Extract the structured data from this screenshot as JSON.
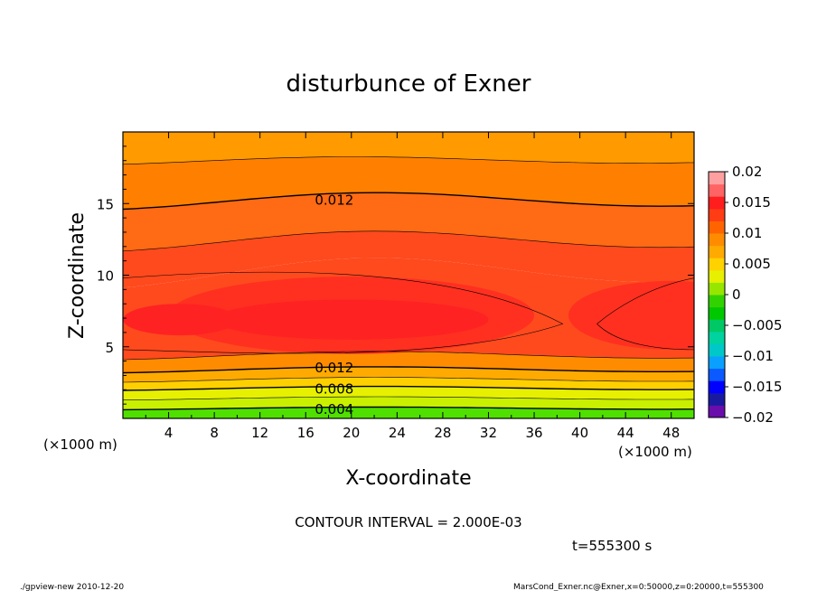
{
  "chart_data": {
    "type": "contour",
    "title": "disturbunce of Exner",
    "xlabel": "X-coordinate",
    "ylabel": "Z-coordinate",
    "x_unit_left": "(×1000 m)",
    "x_unit_right": "(×1000 m)",
    "xlim": [
      0,
      50
    ],
    "ylim": [
      0,
      20
    ],
    "x_ticks": [
      4,
      8,
      12,
      16,
      20,
      24,
      28,
      32,
      36,
      40,
      44,
      48
    ],
    "y_ticks": [
      5,
      10,
      15
    ],
    "contour_interval": 0.002,
    "contour_labels": [
      {
        "text": "0.012",
        "x": 18.5,
        "z": 15.3
      },
      {
        "text": "0.012",
        "x": 18.5,
        "z": 3.6
      },
      {
        "text": "0.008",
        "x": 18.5,
        "z": 2.1
      },
      {
        "text": "0.004",
        "x": 18.5,
        "z": 0.7
      }
    ],
    "colorbar": {
      "min": -0.02,
      "max": 0.02,
      "tick_labels": [
        "0.02",
        "0.015",
        "0.01",
        "0.005",
        "0",
        "−0.005",
        "−0.01",
        "−0.015",
        "−0.02"
      ],
      "colors": [
        "#6a0dad",
        "#1a1aa0",
        "#0000ff",
        "#0a5aff",
        "#0aa0ff",
        "#00c8c8",
        "#00d2a0",
        "#00c864",
        "#00c800",
        "#32d200",
        "#96e600",
        "#e6f000",
        "#ffd200",
        "#ffaa00",
        "#ff8c00",
        "#ff6400",
        "#ff3c14",
        "#ff1e1e",
        "#ff6464",
        "#ffa0a0"
      ]
    },
    "field_colors": {
      "top": "#ff9a00",
      "upper": "#ff8000",
      "mid_upper": "#ff6a14",
      "mid": "#ff4a1e",
      "core": "#ff3020",
      "core_inner": "#ff2222",
      "ground_yellow": "#ffd000",
      "ground_lime": "#c8f000",
      "ground_green": "#50e000"
    }
  },
  "footer": {
    "contour_interval_text": "CONTOUR INTERVAL = 2.000E-03",
    "time_text": "t=555300 s",
    "left_note": "./gpview-new  2010-12-20",
    "right_note": "MarsCond_Exner.nc@Exner,x=0:50000,z=0:20000,t=555300"
  }
}
